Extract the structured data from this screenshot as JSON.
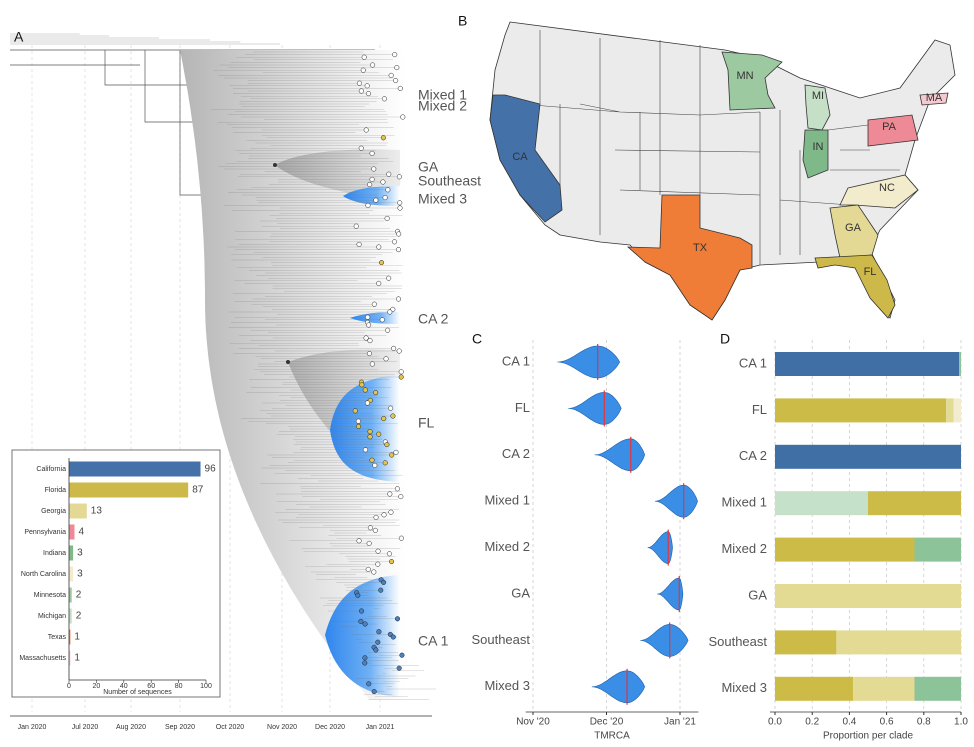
{
  "panel_labels": [
    "A",
    "B",
    "C",
    "D"
  ],
  "tree": {
    "axis_labels": [
      "Jan 2020",
      "Jul 2020",
      "Aug 2020",
      "Sep 2020",
      "Oct 2020",
      "Nov 2020",
      "Dec 2020",
      "Jan 2021"
    ],
    "clade_labels": [
      "Mixed 1",
      "Mixed 2",
      "GA",
      "Southeast",
      "Mixed 3",
      "CA 2",
      "FL",
      "CA 1"
    ]
  },
  "map": {
    "state_labels": [
      "CA",
      "TX",
      "MN",
      "MI",
      "IN",
      "PA",
      "MA",
      "NC",
      "GA",
      "FL"
    ]
  },
  "chart_data": [
    {
      "type": "hbar",
      "categories": [
        "California",
        "Florida",
        "Georgia",
        "Pennsylvania",
        "Indiana",
        "North Carolina",
        "Minnesota",
        "Michigan",
        "Texas",
        "Massachusetts"
      ],
      "values": [
        96,
        87,
        13,
        4,
        3,
        3,
        2,
        2,
        1,
        1
      ],
      "colors": [
        "#4472a8",
        "#cdb94a",
        "#e3d994",
        "#ee8a95",
        "#7fb98a",
        "#f3eccc",
        "#9cc9a0",
        "#c6e0c8",
        "#ef7c37",
        "#f5c9cf"
      ],
      "xlim": [
        0,
        100
      ],
      "xticks": [
        0,
        20,
        40,
        60,
        80,
        100
      ],
      "xlabel": "Number of sequences"
    },
    {
      "type": "violin",
      "categories": [
        "CA 1",
        "FL",
        "CA 2",
        "Mixed 1",
        "Mixed 2",
        "GA",
        "Southeast",
        "Mixed 3"
      ],
      "min": [
        11.33,
        11.48,
        11.84,
        12.66,
        12.56,
        12.69,
        12.46,
        11.8
      ],
      "max": [
        12.18,
        12.2,
        12.52,
        13.24,
        12.9,
        13.04,
        13.11,
        12.52
      ],
      "median": [
        11.88,
        11.97,
        12.33,
        13.05,
        12.84,
        12.99,
        12.86,
        12.28
      ],
      "color": "#3a8ee6",
      "median_color": "#e8333a",
      "xlim": [
        10.9,
        13.25
      ],
      "xticks": [
        {
          "value": 11,
          "label": "Nov '20"
        },
        {
          "value": 12,
          "label": "Dec '20"
        },
        {
          "value": 13,
          "label": "Jan '21"
        }
      ],
      "grid": true,
      "xlabel": "TMRCA"
    },
    {
      "type": "stacked_hbar",
      "categories": [
        "CA 1",
        "FL",
        "CA 2",
        "Mixed 1",
        "Mixed 2",
        "GA",
        "Southeast",
        "Mixed 3"
      ],
      "series": [
        {
          "color": "#3f6fa5",
          "values": [
            0.99,
            0,
            1,
            0,
            0,
            0,
            0,
            0
          ]
        },
        {
          "color": "#c5e1c9",
          "values": [
            0,
            0,
            0,
            0.5,
            0,
            0,
            0,
            0
          ]
        },
        {
          "color": "#ccbb47",
          "values": [
            0,
            0.92,
            0,
            0.5,
            0.75,
            0,
            0.33,
            0.42
          ]
        },
        {
          "color": "#e3da94",
          "values": [
            0,
            0.04,
            0,
            0,
            0,
            1,
            0.67,
            0.33
          ]
        },
        {
          "color": "#f2edd0",
          "values": [
            0,
            0.04,
            0,
            0,
            0,
            0,
            0,
            0
          ]
        },
        {
          "color": "#8cc398",
          "values": [
            0.01,
            0,
            0,
            0,
            0.25,
            0,
            0,
            0.25
          ]
        }
      ],
      "xlim": [
        0,
        1
      ],
      "xticks": [
        {
          "value": 0,
          "label": "0.0"
        },
        0.2,
        0.4,
        0.6,
        0.8,
        {
          "value": 1,
          "label": "1.0"
        }
      ],
      "grid": true,
      "xlabel": "Proportion per clade"
    }
  ]
}
